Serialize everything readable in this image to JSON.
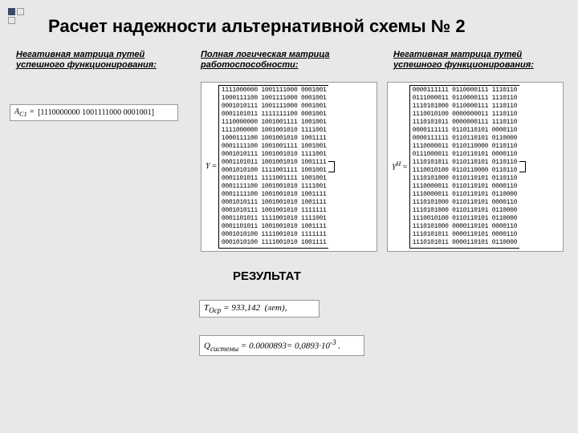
{
  "title": "Расчет надежности альтернативной схемы № 2",
  "headings": {
    "left": "Негативная матрица путей успешного функционирования:",
    "mid": "Полная логическая матрица работоспособности:",
    "right": "Негативная матрица путей успешного функционирования:"
  },
  "ac": {
    "label": "A_{C1} =",
    "value": "[1110000000  1001111000  0001001]"
  },
  "matrix_mid": {
    "label": "Y =",
    "rows": [
      "1111000000  1001111000  0001001",
      "1000111100  1001111000  0001001",
      "0001010111  1001111000  0001001",
      "0001101011  1111111100  0001001",
      "1110000000  1001001111  1001001",
      "1111000000  1001001010  1111001",
      "1000111100  1001001010  1001111",
      "0001111100  1001001111  1001001",
      "0001010111  1001001010  1111001",
      "0001101011  1001001010  1001111",
      "0001010100  1111001111  1001001",
      "0001101011  1111001111  1001001",
      "0001111100  1001001010  1111001",
      "0001111100  1001001010  1001111",
      "0001010111  1001001010  1001111",
      "0001010111  1001001010  1111111",
      "0001101011  1111001010  1111001",
      "0001101011  1001001010  1001111",
      "0001010100  1111001010  1111111",
      "0001010100  1111001010  1001111"
    ]
  },
  "matrix_right": {
    "label": "Y^H =",
    "rows": [
      "0000111111  0110000111  1110110",
      "0111000011  0110000111  1110110",
      "1110101000  0110000111  1110110",
      "1110010100  0000000011  1110110",
      "1110101011  0000000111  1110110",
      "0000111111  0110110101  0000110",
      "0000111111  0110110101  0110000",
      "1110000011  0110110000  0110110",
      "0111000011  0110110101  0000110",
      "1110101011  0110110101  0110110",
      "1110010100  0110110000  0110110",
      "1110101000  0110110101  0110110",
      "1110000011  0110110101  0000110",
      "1110000011  0110110101  0110000",
      "1110101000  0110110101  0000110",
      "1110101000  0110110101  0110000",
      "1110010100  0110110101  0110000",
      "1110101000  0000110101  0000110",
      "1110101011  0000110101  0000110",
      "1110101011  0000110101  0110000"
    ]
  },
  "result_label": "РЕЗУЛЬТАТ",
  "tocp": "T_{Оср} = 933,142  (лет),",
  "q": "Q_{системы} = 0.0000893= 0,0893·10⁻³ ."
}
